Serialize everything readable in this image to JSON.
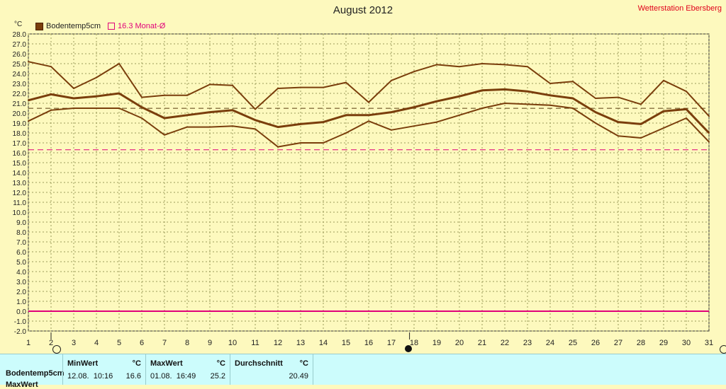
{
  "title": "August 2012",
  "station": "Wetterstation Ebersberg",
  "unit": "°C",
  "legend": {
    "series_label": "Bodentemp5cm",
    "avg_label": "16.3 Monat-Ø"
  },
  "colors": {
    "series": "#7a3e0c",
    "avg_line": "#e0007a",
    "zero_line": "#e0007a",
    "mean_dash": "#5a3b10",
    "grid": "#9a9a5a",
    "background": "#fdf9be"
  },
  "chart_data": {
    "type": "line",
    "title": "August 2012",
    "xlabel": "",
    "ylabel": "°C",
    "x": [
      1,
      2,
      3,
      4,
      5,
      6,
      7,
      8,
      9,
      10,
      11,
      12,
      13,
      14,
      15,
      16,
      17,
      18,
      19,
      20,
      21,
      22,
      23,
      24,
      25,
      26,
      27,
      28,
      29,
      30,
      31
    ],
    "xlim": [
      1,
      31
    ],
    "ylim": [
      -2,
      28
    ],
    "y_ticks": [
      -2.0,
      -1.0,
      0.0,
      1.0,
      2.0,
      3.0,
      4.0,
      5.0,
      6.0,
      7.0,
      8.0,
      9.0,
      10.0,
      11.0,
      12.0,
      13.0,
      14.0,
      15.0,
      16.0,
      17.0,
      18.0,
      19.0,
      20.0,
      21.0,
      22.0,
      23.0,
      24.0,
      25.0,
      26.0,
      27.0,
      28.0
    ],
    "grid": true,
    "legend_position": "top-left",
    "series": [
      {
        "name": "Bodentemp5cm",
        "role": "max",
        "values": [
          25.2,
          24.7,
          22.5,
          23.6,
          25.0,
          21.6,
          21.8,
          21.8,
          22.9,
          22.8,
          20.4,
          22.5,
          22.6,
          22.6,
          23.1,
          21.1,
          23.3,
          24.2,
          24.9,
          24.7,
          25.0,
          24.9,
          24.7,
          23.0,
          23.2,
          21.5,
          21.6,
          20.9,
          23.3,
          22.2,
          19.7
        ]
      },
      {
        "name": "Bodentemp5cm",
        "role": "mean",
        "values": [
          21.3,
          21.9,
          21.5,
          21.7,
          22.0,
          20.6,
          19.5,
          19.8,
          20.1,
          20.3,
          19.3,
          18.6,
          18.9,
          19.1,
          19.8,
          19.8,
          20.1,
          20.6,
          21.2,
          21.7,
          22.3,
          22.4,
          22.2,
          21.8,
          21.5,
          20.1,
          19.1,
          18.9,
          20.2,
          20.4,
          18.0
        ]
      },
      {
        "name": "Bodentemp5cm",
        "role": "min",
        "values": [
          19.2,
          20.3,
          20.5,
          20.5,
          20.5,
          19.5,
          17.8,
          18.6,
          18.6,
          18.7,
          18.4,
          16.6,
          17.0,
          17.0,
          18.0,
          19.2,
          18.3,
          18.7,
          19.1,
          19.8,
          20.5,
          21.0,
          20.9,
          20.8,
          20.5,
          19.0,
          17.7,
          17.5,
          18.5,
          19.5,
          17.1
        ]
      }
    ],
    "reference_lines": [
      {
        "label": "16.3 Monat-Ø",
        "value": 16.3,
        "style": "dashed"
      },
      {
        "label": "Durchschnitt",
        "value": 20.49,
        "style": "dashed"
      },
      {
        "label": "0",
        "value": 0.0,
        "style": "solid"
      }
    ]
  },
  "stats": {
    "row_label": "Bodentemp5cm",
    "row2_label": "MaxWert",
    "min": {
      "header": "MinWert",
      "unit": "°C",
      "date": "12.08.  10:16",
      "value": "16.6"
    },
    "max": {
      "header": "MaxWert",
      "unit": "°C",
      "date": "01.08.  16:49",
      "value": "25.2"
    },
    "avg": {
      "header": "Durchschnitt",
      "unit": "°C",
      "value": "20.49"
    }
  }
}
